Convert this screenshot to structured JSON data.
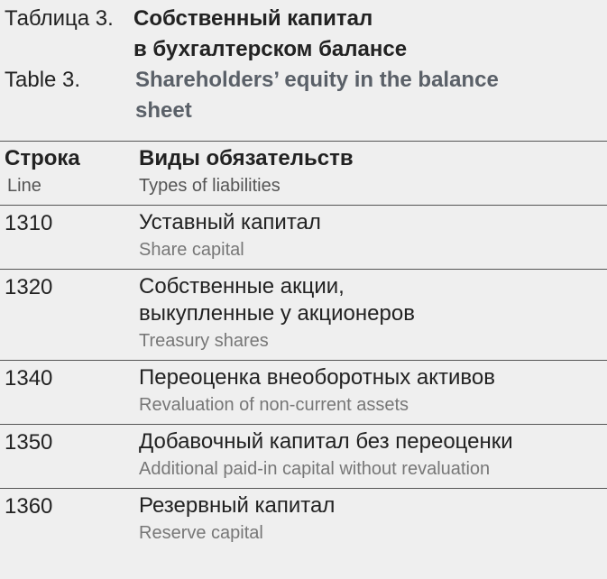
{
  "header": {
    "label_ru": "Таблица 3.",
    "title_ru": [
      "Собственный капитал",
      "в бухгалтерском балансе"
    ],
    "label_en": "Table 3.",
    "title_en": [
      "Shareholders’ equity in the balance",
      "sheet"
    ]
  },
  "table": {
    "columns": [
      {
        "ru": "Строка",
        "en": "Line"
      },
      {
        "ru": "Виды обязательств",
        "en": "Types of liabilities"
      }
    ],
    "rows": [
      {
        "line": "1310",
        "ru": [
          "Уставный капитал"
        ],
        "en": "Share capital"
      },
      {
        "line": "1320",
        "ru": [
          "Собственные акции,",
          "выкупленные у акционеров"
        ],
        "en": "Treasury shares"
      },
      {
        "line": "1340",
        "ru": [
          "Переоценка внеоборотных активов"
        ],
        "en": "Revaluation of non-current assets"
      },
      {
        "line": "1350",
        "ru": [
          "Добавочный капитал без переоценки"
        ],
        "en": "Additional paid-in capital without revaluation"
      },
      {
        "line": "1360",
        "ru": [
          "Резервный капитал"
        ],
        "en": "Reserve capital"
      }
    ]
  }
}
